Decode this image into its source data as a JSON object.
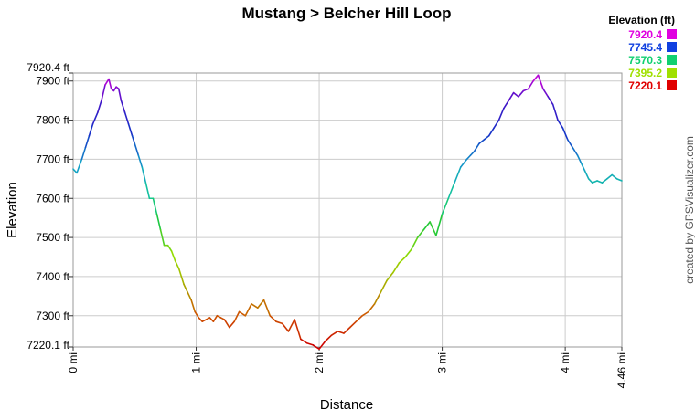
{
  "chart_data": {
    "type": "line",
    "title": "Mustang > Belcher Hill Loop",
    "xlabel": "Distance",
    "ylabel": "Elevation",
    "xlim": [
      0,
      4.46
    ],
    "ylim": [
      7220.1,
      7920.4
    ],
    "x_ticks": [
      {
        "value": 0,
        "label": "0 mi"
      },
      {
        "value": 1,
        "label": "1 mi"
      },
      {
        "value": 2,
        "label": "2 mi"
      },
      {
        "value": 3,
        "label": "3 mi"
      },
      {
        "value": 4,
        "label": "4 mi"
      },
      {
        "value": 4.46,
        "label": "4.46 mi"
      }
    ],
    "y_ticks": [
      {
        "value": 7220.1,
        "label": "7220.1 ft"
      },
      {
        "value": 7300,
        "label": "7300 ft"
      },
      {
        "value": 7400,
        "label": "7400 ft"
      },
      {
        "value": 7500,
        "label": "7500 ft"
      },
      {
        "value": 7600,
        "label": "7600 ft"
      },
      {
        "value": 7700,
        "label": "7700 ft"
      },
      {
        "value": 7800,
        "label": "7800 ft"
      },
      {
        "value": 7900,
        "label": "7900 ft"
      },
      {
        "value": 7920.4,
        "label": "7920.4 ft"
      }
    ],
    "grid": true,
    "legend": {
      "title": "Elevation (ft)",
      "placement": "top-right",
      "entries": [
        {
          "label": "7920.4",
          "color": "#e000e0"
        },
        {
          "label": "7745.4",
          "color": "#1040e0"
        },
        {
          "label": "7570.3",
          "color": "#10d070"
        },
        {
          "label": "7395.2",
          "color": "#a0e000"
        },
        {
          "label": "7220.1",
          "color": "#e00000"
        }
      ]
    },
    "series": [
      {
        "x": [
          0,
          0.03,
          0.07,
          0.1,
          0.13,
          0.16,
          0.2,
          0.23,
          0.26,
          0.29,
          0.31,
          0.33,
          0.35,
          0.37,
          0.39,
          0.42,
          0.45,
          0.48,
          0.5,
          0.53,
          0.56,
          0.59,
          0.62,
          0.65,
          0.68,
          0.71,
          0.74,
          0.77,
          0.8,
          0.83,
          0.86,
          0.88,
          0.9,
          0.93,
          0.96,
          0.99,
          1.02,
          1.05,
          1.08,
          1.11,
          1.14,
          1.17,
          1.2,
          1.23,
          1.27,
          1.31,
          1.35,
          1.4,
          1.45,
          1.5,
          1.55,
          1.6,
          1.65,
          1.7,
          1.75,
          1.8,
          1.85,
          1.9,
          1.95,
          2.0,
          2.05,
          2.1,
          2.15,
          2.2,
          2.25,
          2.3,
          2.35,
          2.4,
          2.45,
          2.5,
          2.55,
          2.6,
          2.65,
          2.7,
          2.75,
          2.8,
          2.85,
          2.9,
          2.95,
          3.0,
          3.05,
          3.1,
          3.15,
          3.2,
          3.23,
          3.26,
          3.3,
          3.34,
          3.38,
          3.42,
          3.46,
          3.5,
          3.54,
          3.58,
          3.62,
          3.66,
          3.7,
          3.74,
          3.78,
          3.82,
          3.86,
          3.9,
          3.94,
          3.98,
          4.02,
          4.06,
          4.1,
          4.13,
          4.16,
          4.19,
          4.22,
          4.26,
          4.3,
          4.34,
          4.38,
          4.42,
          4.46
        ],
        "y": [
          7675,
          7665,
          7700,
          7730,
          7760,
          7790,
          7820,
          7850,
          7890,
          7905,
          7880,
          7875,
          7885,
          7880,
          7850,
          7820,
          7790,
          7760,
          7740,
          7710,
          7680,
          7640,
          7600,
          7600,
          7560,
          7520,
          7480,
          7480,
          7465,
          7440,
          7420,
          7400,
          7380,
          7360,
          7340,
          7310,
          7295,
          7285,
          7290,
          7295,
          7285,
          7300,
          7295,
          7290,
          7270,
          7285,
          7310,
          7300,
          7330,
          7320,
          7340,
          7300,
          7285,
          7280,
          7260,
          7290,
          7240,
          7230,
          7225,
          7215,
          7235,
          7250,
          7260,
          7255,
          7270,
          7285,
          7300,
          7310,
          7330,
          7360,
          7390,
          7410,
          7435,
          7450,
          7470,
          7500,
          7520,
          7540,
          7505,
          7560,
          7600,
          7640,
          7680,
          7700,
          7710,
          7720,
          7740,
          7750,
          7760,
          7780,
          7800,
          7830,
          7850,
          7870,
          7860,
          7875,
          7880,
          7900,
          7915,
          7880,
          7860,
          7840,
          7800,
          7780,
          7750,
          7730,
          7710,
          7690,
          7670,
          7650,
          7640,
          7645,
          7640,
          7650,
          7660,
          7650,
          7645
        ]
      }
    ],
    "annotations": [
      "created by GPSVisualizer.com"
    ]
  }
}
